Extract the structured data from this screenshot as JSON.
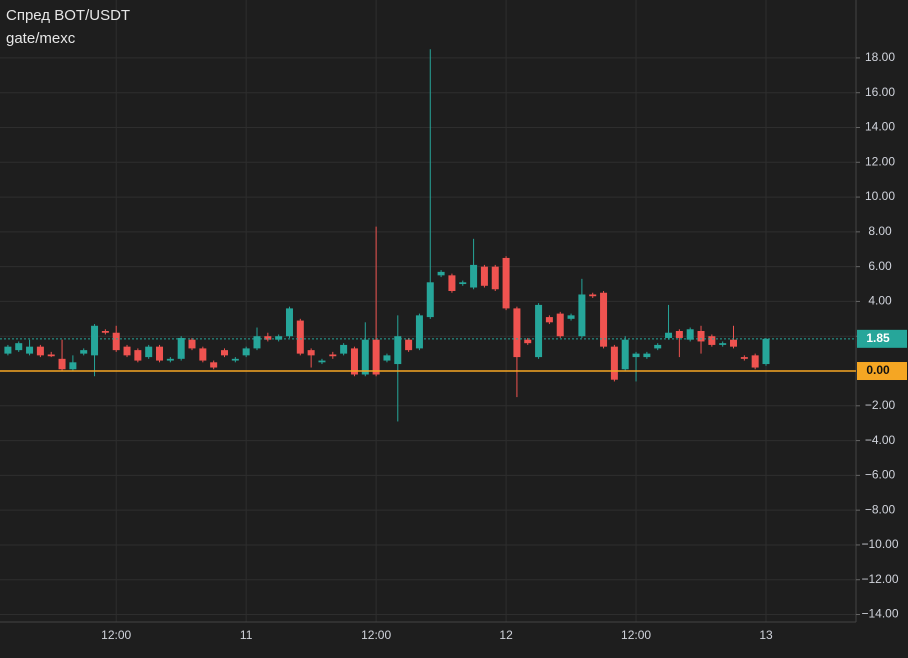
{
  "chart_data": {
    "type": "candlestick",
    "title": "Спред BOT/USDT",
    "subtitle": "gate/mexc",
    "categories": [
      null,
      null,
      null,
      null,
      null,
      null,
      null,
      null,
      null,
      null,
      "12:00",
      null,
      null,
      null,
      null,
      null,
      null,
      null,
      null,
      null,
      null,
      null,
      "11",
      null,
      null,
      null,
      null,
      null,
      null,
      null,
      null,
      null,
      null,
      null,
      "12:00",
      null,
      null,
      null,
      null,
      null,
      null,
      null,
      null,
      null,
      null,
      null,
      "12",
      null,
      null,
      null,
      null,
      null,
      null,
      null,
      null,
      null,
      null,
      null,
      "12:00",
      null,
      null,
      null,
      null,
      null,
      null,
      null,
      null,
      null,
      null,
      null,
      "13"
    ],
    "open": [
      1.0,
      1.2,
      1.0,
      1.4,
      0.95,
      0.7,
      0.1,
      1.0,
      0.9,
      2.3,
      2.2,
      1.4,
      1.2,
      0.8,
      1.4,
      0.6,
      0.7,
      1.8,
      1.3,
      0.5,
      1.2,
      0.6,
      0.9,
      1.3,
      2.0,
      1.8,
      2.0,
      2.9,
      1.2,
      0.5,
      0.95,
      1.0,
      1.3,
      -0.2,
      1.8,
      0.6,
      0.4,
      1.8,
      1.3,
      3.1,
      5.5,
      5.5,
      5.0,
      4.8,
      6.0,
      6.0,
      6.5,
      3.6,
      1.8,
      0.8,
      3.1,
      3.3,
      3.0,
      2.0,
      4.4,
      4.5,
      1.4,
      0.1,
      0.8,
      0.8,
      1.3,
      1.9,
      2.3,
      1.8,
      2.3,
      2.0,
      1.5,
      1.8,
      0.8,
      0.9,
      0.4
    ],
    "high": [
      1.5,
      1.7,
      1.8,
      1.5,
      1.1,
      1.8,
      0.9,
      1.3,
      2.7,
      2.4,
      2.6,
      1.5,
      1.3,
      1.5,
      1.5,
      0.8,
      2.0,
      1.9,
      1.4,
      0.6,
      1.3,
      0.8,
      1.4,
      2.5,
      2.2,
      2.1,
      3.7,
      3.0,
      1.3,
      0.7,
      1.1,
      1.6,
      1.4,
      2.8,
      8.3,
      1.0,
      3.2,
      1.9,
      3.3,
      18.5,
      5.8,
      5.6,
      5.2,
      7.6,
      6.1,
      6.1,
      6.6,
      3.7,
      1.9,
      3.9,
      3.2,
      3.4,
      3.3,
      5.3,
      4.5,
      4.6,
      1.5,
      2.0,
      1.1,
      1.1,
      1.6,
      3.8,
      2.4,
      2.5,
      2.6,
      2.1,
      1.7,
      2.6,
      0.9,
      1.0,
      1.9
    ],
    "low": [
      0.9,
      1.1,
      0.9,
      0.8,
      0.8,
      0.0,
      0.0,
      0.9,
      -0.3,
      2.1,
      1.1,
      0.8,
      0.5,
      0.7,
      0.5,
      0.5,
      0.6,
      1.2,
      0.5,
      0.1,
      0.8,
      0.5,
      0.8,
      1.2,
      1.7,
      1.7,
      1.9,
      0.9,
      0.2,
      0.4,
      0.7,
      0.9,
      -0.3,
      -0.3,
      -0.3,
      0.5,
      -2.9,
      1.1,
      1.2,
      3.0,
      5.4,
      4.5,
      4.9,
      4.7,
      4.8,
      4.6,
      3.5,
      -1.5,
      1.5,
      0.7,
      2.7,
      1.9,
      2.9,
      1.9,
      4.2,
      1.3,
      -0.6,
      0.0,
      -0.6,
      0.7,
      1.2,
      1.8,
      0.8,
      1.7,
      1.0,
      1.4,
      1.4,
      1.3,
      0.6,
      0.1,
      0.3
    ],
    "close": [
      1.4,
      1.6,
      1.4,
      0.9,
      0.85,
      0.1,
      0.5,
      1.2,
      2.6,
      2.2,
      1.2,
      0.9,
      0.6,
      1.4,
      0.6,
      0.7,
      1.9,
      1.3,
      0.6,
      0.2,
      0.9,
      0.7,
      1.3,
      2.0,
      1.8,
      2.0,
      3.6,
      1.0,
      0.9,
      0.6,
      0.85,
      1.5,
      -0.2,
      1.8,
      -0.2,
      0.9,
      2.0,
      1.2,
      3.2,
      5.1,
      5.7,
      4.6,
      5.1,
      6.1,
      4.9,
      4.7,
      3.6,
      0.8,
      1.6,
      3.8,
      2.8,
      2.0,
      3.2,
      4.4,
      4.3,
      1.4,
      -0.5,
      1.8,
      1.0,
      1.0,
      1.5,
      2.2,
      1.9,
      2.4,
      1.7,
      1.5,
      1.6,
      1.4,
      0.7,
      0.2,
      1.85
    ],
    "up_color": "#26a69a",
    "down_color": "#ef5350",
    "ylim": [
      -14.43,
      21.33
    ],
    "yticks": [
      {
        "value": -14,
        "label": "−14.00"
      },
      {
        "value": -12,
        "label": "−12.00"
      },
      {
        "value": -10,
        "label": "−10.00"
      },
      {
        "value": -8,
        "label": "−8.00"
      },
      {
        "value": -6,
        "label": "−6.00"
      },
      {
        "value": -4,
        "label": "−4.00"
      },
      {
        "value": -2,
        "label": "−2.00"
      },
      {
        "value": 2,
        "label": "2.00"
      },
      {
        "value": 4,
        "label": "4.00"
      },
      {
        "value": 6,
        "label": "6.00"
      },
      {
        "value": 8,
        "label": "8.00"
      },
      {
        "value": 10,
        "label": "10.00"
      },
      {
        "value": 12,
        "label": "12.00"
      },
      {
        "value": 14,
        "label": "14.00"
      },
      {
        "value": 16,
        "label": "16.00"
      },
      {
        "value": 18,
        "label": "18.00"
      }
    ],
    "price_lines": [
      {
        "value": 0,
        "label": "0.00",
        "color": "#f5a623"
      },
      {
        "value": 1.85,
        "label": "1.85",
        "color": "#26a69a"
      }
    ],
    "grid": true
  }
}
